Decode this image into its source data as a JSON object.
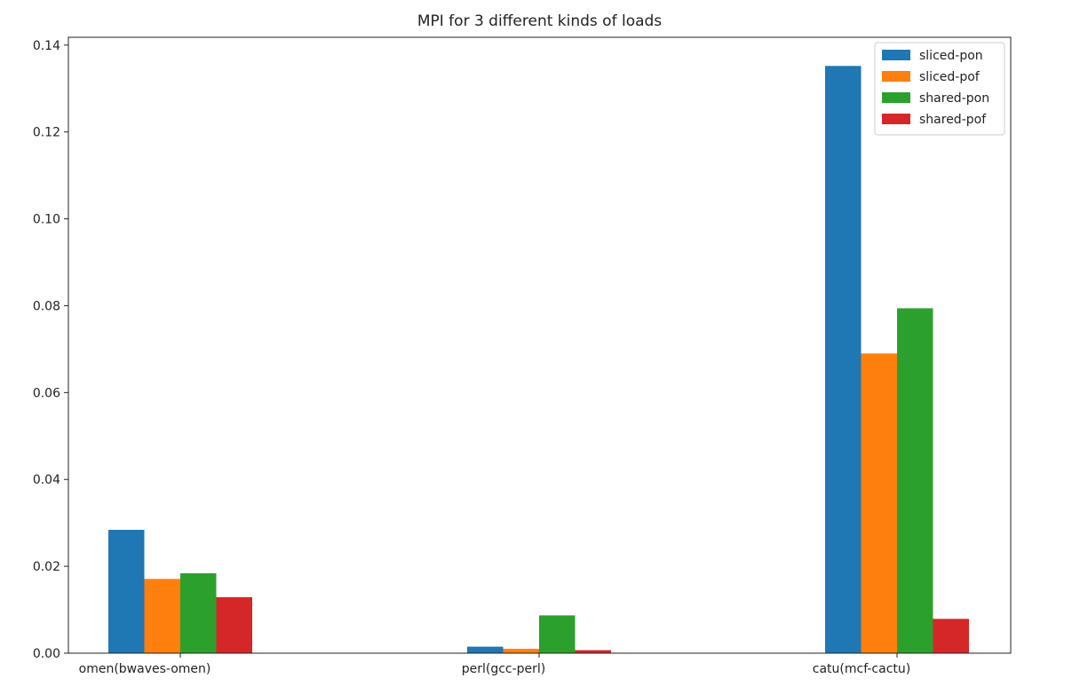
{
  "chart_data": {
    "type": "bar",
    "title": "MPI for 3 different kinds of loads",
    "xlabel": "",
    "ylabel": "",
    "categories": [
      "omen(bwaves-omen)",
      "perl(gcc-perl)",
      "catu(mcf-cactu)"
    ],
    "series": [
      {
        "name": "sliced-pon",
        "color": "#1f77b4",
        "values": [
          0.0284,
          0.0015,
          0.1352
        ]
      },
      {
        "name": "sliced-pof",
        "color": "#ff7f0e",
        "values": [
          0.0171,
          0.001,
          0.069
        ]
      },
      {
        "name": "shared-pon",
        "color": "#2ca02c",
        "values": [
          0.0184,
          0.0087,
          0.0794
        ]
      },
      {
        "name": "shared-pof",
        "color": "#d62728",
        "values": [
          0.0129,
          0.0007,
          0.0079
        ]
      }
    ],
    "ylim": [
      0,
      0.1418
    ],
    "yticks": [
      0.0,
      0.02,
      0.04,
      0.06,
      0.08,
      0.1,
      0.12,
      0.14
    ],
    "ytick_labels": [
      "0.00",
      "0.02",
      "0.04",
      "0.06",
      "0.08",
      "0.10",
      "0.12",
      "0.14"
    ],
    "grid": false,
    "legend_position": "top-right"
  }
}
